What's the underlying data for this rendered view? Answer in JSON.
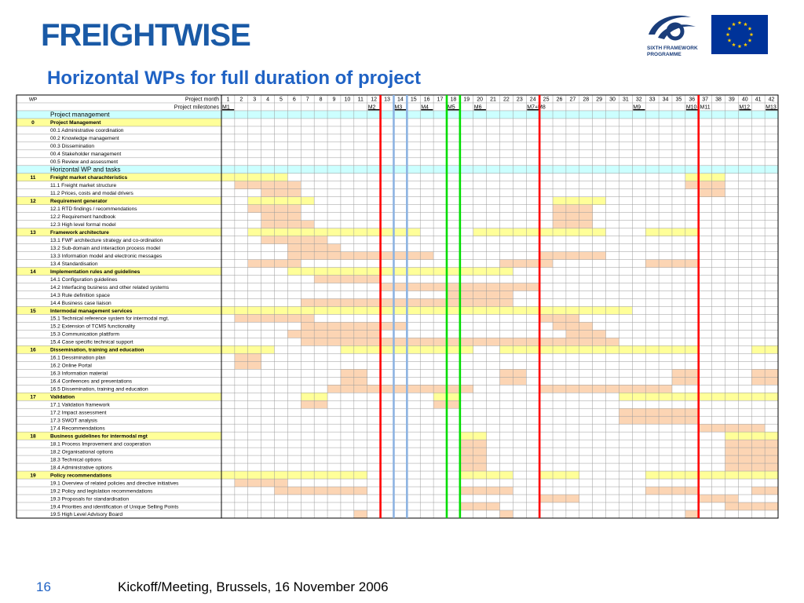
{
  "header": {
    "logo_text": "FREIGHTWISE",
    "programme_text": [
      "SIXTH FRAMEWORK",
      "PROGRAMME"
    ],
    "title": "Horizontal WPs for full duration of project"
  },
  "colors": {
    "title": "#1f62c4",
    "wp_row": "#ffff99",
    "section_row": "#ccffff",
    "bar": "#fcd5b4",
    "red_line": "#ff0000",
    "blue_line": "#8db3e2",
    "green_line": "#00dd00",
    "eu_flag": "#003399",
    "eu_stars": "#ffcc00"
  },
  "gantt": {
    "header_wp": "WP",
    "header_month": "Project month",
    "header_milestones": "Project milestones",
    "months": [
      "1",
      "2",
      "3",
      "4",
      "5",
      "6",
      "7",
      "8",
      "9",
      "10",
      "11",
      "12",
      "13",
      "14",
      "15",
      "16",
      "17",
      "18",
      "19",
      "20",
      "21",
      "22",
      "23",
      "24",
      "25",
      "26",
      "27",
      "28",
      "29",
      "30",
      "31",
      "32",
      "33",
      "34",
      "35",
      "36",
      "37",
      "38",
      "39",
      "40",
      "41",
      "42"
    ],
    "milestones": [
      {
        "month": 1,
        "label": "M1"
      },
      {
        "month": 12,
        "label": "M2"
      },
      {
        "month": 14,
        "label": "M3"
      },
      {
        "month": 16,
        "label": "M4"
      },
      {
        "month": 18,
        "label": "M5"
      },
      {
        "month": 20,
        "label": "M6"
      },
      {
        "month": 24,
        "label": "M7+M8"
      },
      {
        "month": 32,
        "label": "M9"
      },
      {
        "month": 36,
        "label": "M10+M11"
      },
      {
        "month": 40,
        "label": "M12"
      },
      {
        "month": 42,
        "label": "M13"
      }
    ],
    "vertical_lines": [
      {
        "after_month": 12,
        "color": "red"
      },
      {
        "after_month": 13,
        "color": "blue"
      },
      {
        "after_month": 14,
        "color": "blue"
      },
      {
        "after_month": 17,
        "color": "green"
      },
      {
        "after_month": 18,
        "color": "green"
      },
      {
        "after_month": 24,
        "color": "red"
      },
      {
        "after_month": 36,
        "color": "red"
      }
    ],
    "rows": [
      {
        "type": "section",
        "label": "Project management"
      },
      {
        "type": "wp",
        "wp": "0",
        "label": "Project Management"
      },
      {
        "type": "task",
        "label": "00.1 Administrative coordination",
        "bars": []
      },
      {
        "type": "task",
        "label": "00.2 Knowledge management",
        "bars": []
      },
      {
        "type": "task",
        "label": "00.3 Dissemination",
        "bars": []
      },
      {
        "type": "task",
        "label": "00.4 Stakeholder management",
        "bars": []
      },
      {
        "type": "task",
        "label": "00.5 Review and assessment",
        "bars": []
      },
      {
        "type": "section",
        "label": "Horizontal WP and tasks"
      },
      {
        "type": "wp",
        "wp": "11",
        "label": "Freight market charachteristics"
      },
      {
        "type": "task",
        "label": "11.1 Freight market structure",
        "bars": [
          [
            2,
            6
          ],
          [
            36,
            38
          ]
        ]
      },
      {
        "type": "task",
        "label": "11.2 Prices, costs and modal drivers",
        "bars": [
          [
            4,
            6
          ],
          [
            37,
            38
          ]
        ]
      },
      {
        "type": "wp",
        "wp": "12",
        "label": "Requirement generator"
      },
      {
        "type": "task",
        "label": "12.1 RTD findings / recommendations",
        "bars": [
          [
            3,
            6
          ],
          [
            26,
            28
          ]
        ]
      },
      {
        "type": "task",
        "label": "12.2 Requirement handbook",
        "bars": [
          [
            4,
            6
          ],
          [
            26,
            28
          ]
        ]
      },
      {
        "type": "task",
        "label": "12.3 High level formal model",
        "bars": [
          [
            4,
            7
          ],
          [
            26,
            28
          ]
        ]
      },
      {
        "type": "wp",
        "wp": "13",
        "label": "Framework architecture"
      },
      {
        "type": "task",
        "label": "13.1 FWF architecture strategy and co-ordination",
        "bars": [
          [
            4,
            8
          ]
        ]
      },
      {
        "type": "task",
        "label": "13.2 Sub-domain and interaction process model",
        "bars": [
          [
            6,
            9
          ]
        ]
      },
      {
        "type": "task",
        "label": "13.3 Information model and electronic messages",
        "bars": [
          [
            6,
            16
          ],
          [
            25,
            29
          ]
        ]
      },
      {
        "type": "task",
        "label": "13.4 Standardisation",
        "bars": [
          [
            3,
            6
          ],
          [
            22,
            25
          ],
          [
            33,
            36
          ]
        ]
      },
      {
        "type": "wp",
        "wp": "14",
        "label": "Implementation rules and guidelines"
      },
      {
        "type": "task",
        "label": "14.1 Configuration guidelines",
        "bars": [
          [
            8,
            12
          ]
        ]
      },
      {
        "type": "task",
        "label": "14.2 Interfacing business and other related systems",
        "bars": [
          [
            13,
            24
          ]
        ]
      },
      {
        "type": "task",
        "label": "14.3 Rule definition space",
        "bars": [
          [
            18,
            22
          ]
        ]
      },
      {
        "type": "task",
        "label": "14.4 Business case liaison",
        "bars": [
          [
            7,
            22
          ]
        ]
      },
      {
        "type": "wp",
        "wp": "15",
        "label": "Intermodal management services"
      },
      {
        "type": "task",
        "label": "15.1 Technical reference system for intermodal mgt.",
        "bars": [
          [
            2,
            7
          ],
          [
            25,
            27
          ]
        ]
      },
      {
        "type": "task",
        "label": "15.2 Extension of TCMS functionality",
        "bars": [
          [
            7,
            14
          ],
          [
            26,
            28
          ]
        ]
      },
      {
        "type": "task",
        "label": "15.3 Communication plattform",
        "bars": [
          [
            6,
            12
          ],
          [
            27,
            29
          ]
        ]
      },
      {
        "type": "task",
        "label": "15.4 Case specific technical support",
        "bars": [
          [
            7,
            30
          ]
        ]
      },
      {
        "type": "wp",
        "wp": "16",
        "label": "Dissemination, training and education"
      },
      {
        "type": "task",
        "label": "16.1 Dessimination plan",
        "bars": [
          [
            2,
            3
          ]
        ]
      },
      {
        "type": "task",
        "label": "16.2 Online Portal",
        "bars": [
          [
            2,
            3
          ]
        ]
      },
      {
        "type": "task",
        "label": "16.3 Information material",
        "bars": [
          [
            10,
            11
          ],
          [
            22,
            23
          ],
          [
            35,
            36
          ],
          [
            41,
            42
          ]
        ]
      },
      {
        "type": "task",
        "label": "16.4 Confeences and presentations",
        "bars": [
          [
            10,
            11
          ],
          [
            22,
            23
          ],
          [
            35,
            36
          ],
          [
            41,
            42
          ]
        ]
      },
      {
        "type": "task",
        "label": "16.5 Dissemination, training and education",
        "bars": [
          [
            9,
            19
          ],
          [
            25,
            34
          ]
        ]
      },
      {
        "type": "wp",
        "wp": "17",
        "label": "Validation"
      },
      {
        "type": "task",
        "label": "17.1 Validation framework",
        "bars": [
          [
            7,
            8
          ],
          [
            17,
            18
          ]
        ]
      },
      {
        "type": "task",
        "label": "17.2 Impact assessment",
        "bars": [
          [
            31,
            36
          ]
        ]
      },
      {
        "type": "task",
        "label": "17.3 SWOT analysis",
        "bars": [
          [
            31,
            36
          ]
        ]
      },
      {
        "type": "task",
        "label": "17.4 Recommendations",
        "bars": [
          [
            37,
            41
          ]
        ]
      },
      {
        "type": "wp",
        "wp": "18",
        "label": "Business guidelines for intermodal mgt"
      },
      {
        "type": "task",
        "label": "18.1 Process Improvement and cooperation",
        "bars": [
          [
            19,
            20
          ],
          [
            39,
            42
          ]
        ]
      },
      {
        "type": "task",
        "label": "18.2 Organisational options",
        "bars": [
          [
            19,
            20
          ],
          [
            39,
            42
          ]
        ]
      },
      {
        "type": "task",
        "label": "18.3 Technical options",
        "bars": [
          [
            19,
            20
          ],
          [
            39,
            42
          ]
        ]
      },
      {
        "type": "task",
        "label": "18.4 Administrative options",
        "bars": [
          [
            19,
            20
          ],
          [
            39,
            42
          ]
        ]
      },
      {
        "type": "wp",
        "wp": "19",
        "label": "Policy recommendations"
      },
      {
        "type": "task",
        "label": "19.1 Overview of related policies and directive initiatives",
        "bars": [
          [
            2,
            5
          ]
        ]
      },
      {
        "type": "task",
        "label": "19.2 Policy and legislation recommendations",
        "bars": [
          [
            5,
            11
          ],
          [
            19,
            22
          ],
          [
            33,
            36
          ],
          [
            41,
            42
          ]
        ]
      },
      {
        "type": "task",
        "label": "19.3 Proposals for standardisation",
        "bars": [
          [
            25,
            27
          ],
          [
            37,
            39
          ]
        ]
      },
      {
        "type": "task",
        "label": "19.4 Priorities and identification of Unique Selling Points",
        "bars": [
          [
            19,
            21
          ],
          [
            39,
            42
          ]
        ]
      },
      {
        "type": "task",
        "label": "19.5 High Level Advisory Board",
        "bars": [
          [
            11,
            11
          ],
          [
            22,
            22
          ],
          [
            36,
            36
          ]
        ]
      }
    ],
    "wp_fill": {
      "0": [],
      "11": [
        [
          1,
          5
        ],
        [
          36,
          38
        ]
      ],
      "12": [
        [
          3,
          7
        ],
        [
          26,
          29
        ]
      ],
      "13": [
        [
          3,
          15
        ],
        [
          20,
          29
        ],
        [
          33,
          36
        ]
      ],
      "14": [
        [
          6,
          22
        ]
      ],
      "15": [
        [
          1,
          24
        ],
        [
          25,
          31
        ]
      ],
      "16": [
        [
          1,
          4
        ],
        [
          10,
          19
        ],
        [
          22,
          36
        ],
        [
          41,
          42
        ]
      ],
      "17": [
        [
          7,
          8
        ],
        [
          17,
          18
        ],
        [
          31,
          42
        ]
      ],
      "18": [
        [
          19,
          20
        ],
        [
          39,
          42
        ]
      ],
      "19": [
        [
          1,
          11
        ],
        [
          19,
          22
        ],
        [
          25,
          27
        ],
        [
          33,
          42
        ]
      ]
    }
  },
  "footer": {
    "page_number": "16",
    "text": "Kickoff/Meeting, Brussels, 16 November 2006"
  }
}
